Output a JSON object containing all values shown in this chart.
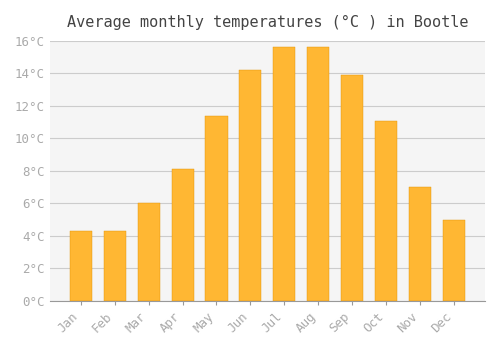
{
  "title": "Average monthly temperatures (°C ) in Bootle",
  "months": [
    "Jan",
    "Feb",
    "Mar",
    "Apr",
    "May",
    "Jun",
    "Jul",
    "Aug",
    "Sep",
    "Oct",
    "Nov",
    "Dec"
  ],
  "values": [
    4.3,
    4.3,
    6.0,
    8.1,
    11.4,
    14.2,
    15.6,
    15.6,
    13.9,
    11.1,
    7.0,
    5.0
  ],
  "bar_color": "#FFA500",
  "bar_edge_color": "#E08000",
  "background_color": "#ffffff",
  "plot_bg_color": "#f5f5f5",
  "grid_color": "#cccccc",
  "ylim": [
    0,
    16
  ],
  "yticks": [
    0,
    2,
    4,
    6,
    8,
    10,
    12,
    14,
    16
  ],
  "title_fontsize": 11,
  "tick_fontsize": 9,
  "tick_font_color": "#aaaaaa"
}
